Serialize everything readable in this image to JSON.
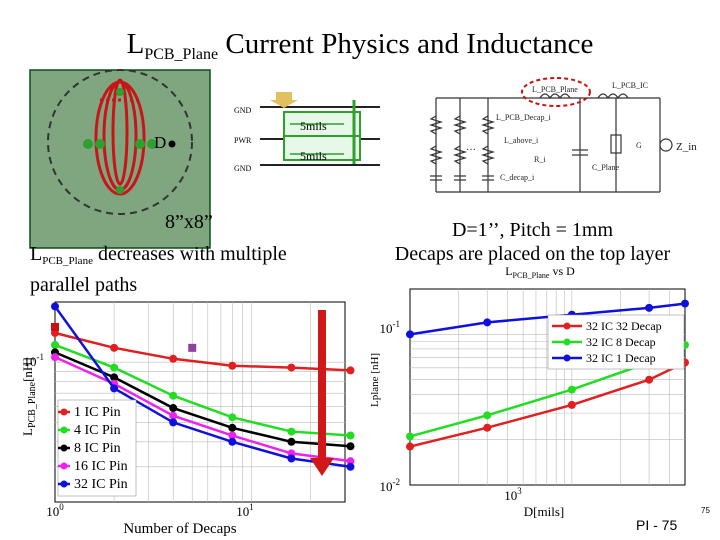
{
  "header": {
    "title_main": "L",
    "title_sub": "PCB_Plane",
    "title_rest": " Current Physics and Inductance"
  },
  "board_figure": {
    "d_label": "D",
    "size_label": "8”x8”",
    "colors": {
      "board": "#7fa67f",
      "via": "#2ea02e",
      "path": "#c8151a"
    }
  },
  "stackup": {
    "gnd_top": "GND",
    "pwr": "PWR",
    "gnd_bottom": "GND",
    "spacing_top": "5mils",
    "spacing_bottom": "5mils"
  },
  "circuit": {
    "l_pcb_plane": "L_PCB_Plane",
    "l_pcb_ic": "L_PCB_IC",
    "l_pcb_decap": "L_PCB_Decap_i",
    "l_above": "L_above_i",
    "r": "R_i",
    "c_decap": "C_decap_i",
    "c_plane": "C_Plane",
    "g": "G",
    "z_in": "Z_in",
    "dots": "…"
  },
  "left_caption": {
    "line1_main": "L",
    "line1_sub": "PCB_Plane",
    "line1_rest": " decreases with multiple",
    "line2": "parallel paths"
  },
  "right_caption": {
    "line1": "D=1’’, Pitch = 1mm",
    "line2": "Decaps are placed on the top layer"
  },
  "chart_data": [
    {
      "type": "line",
      "title": "",
      "xlabel": "Number of Decaps",
      "ylabel_main": "L",
      "ylabel_sub": "PCB_Plane",
      "ylabel_rest": "[nH]",
      "x_scale": "log",
      "y_scale": "log",
      "xlim": [
        1,
        30
      ],
      "ylim": [
        0.02,
        0.2
      ],
      "x_ticks": [
        {
          "base": "10",
          "exp": "0"
        },
        {
          "base": "10",
          "exp": "1"
        }
      ],
      "y_ticks": [
        {
          "base": "10",
          "exp": "-1"
        }
      ],
      "grid": true,
      "legend_position": "bottom-left",
      "x": [
        1,
        2,
        4,
        8,
        16,
        32
      ],
      "series": [
        {
          "name": "1 IC Pin",
          "color": "#e02020",
          "marker": "circle",
          "values": [
            0.14,
            0.118,
            0.104,
            0.096,
            0.094,
            0.091
          ]
        },
        {
          "name": "4 IC Pin",
          "color": "#22dd22",
          "marker": "circle",
          "values": [
            0.122,
            0.094,
            0.068,
            0.053,
            0.045,
            0.043
          ]
        },
        {
          "name": "8 IC Pin",
          "color": "#000000",
          "marker": "circle",
          "values": [
            0.112,
            0.084,
            0.059,
            0.047,
            0.04,
            0.038
          ]
        },
        {
          "name": "16 IC Pin",
          "color": "#ee22ee",
          "marker": "circle",
          "values": [
            0.106,
            0.078,
            0.054,
            0.043,
            0.035,
            0.032
          ]
        },
        {
          "name": "32 IC Pin",
          "color": "#1010dd",
          "marker": "circle",
          "values": [
            0.19,
            0.074,
            0.05,
            0.04,
            0.033,
            0.03
          ]
        }
      ],
      "highlight_points": [
        {
          "x": 1,
          "y": 0.15,
          "color": "#cc1010"
        },
        {
          "x": 5,
          "y": 0.118,
          "color": "#9040a0"
        }
      ]
    },
    {
      "type": "line",
      "title_main": "L",
      "title_sub": "PCB_Plane",
      "title_rest": " vs D",
      "xlabel": "D[mils]",
      "ylabel": "Lplane [nH]",
      "x_scale": "log",
      "y_scale": "log",
      "xlim": [
        100,
        5000
      ],
      "ylim": [
        0.01,
        0.2
      ],
      "x_ticks": [
        {
          "base": "10",
          "exp": "3"
        }
      ],
      "y_ticks": [
        {
          "base": "10",
          "exp": "-1"
        },
        {
          "base": "10",
          "exp": "-2"
        }
      ],
      "grid": true,
      "legend_position": "top-right",
      "x": [
        100,
        300,
        1000,
        3000,
        5000
      ],
      "series": [
        {
          "name": "32 IC 32 Decap",
          "color": "#e02020",
          "marker": "circle",
          "values": [
            0.018,
            0.024,
            0.034,
            0.05,
            0.065
          ]
        },
        {
          "name": "32 IC 8 Decap",
          "color": "#22dd22",
          "marker": "circle",
          "values": [
            0.021,
            0.029,
            0.043,
            0.065,
            0.085
          ]
        },
        {
          "name": "32 IC 1 Decap",
          "color": "#1010dd",
          "marker": "circle",
          "values": [
            0.1,
            0.12,
            0.135,
            0.15,
            0.16
          ]
        }
      ]
    }
  ],
  "footer": {
    "page_label": "PI - 75",
    "corner_number": "75"
  }
}
